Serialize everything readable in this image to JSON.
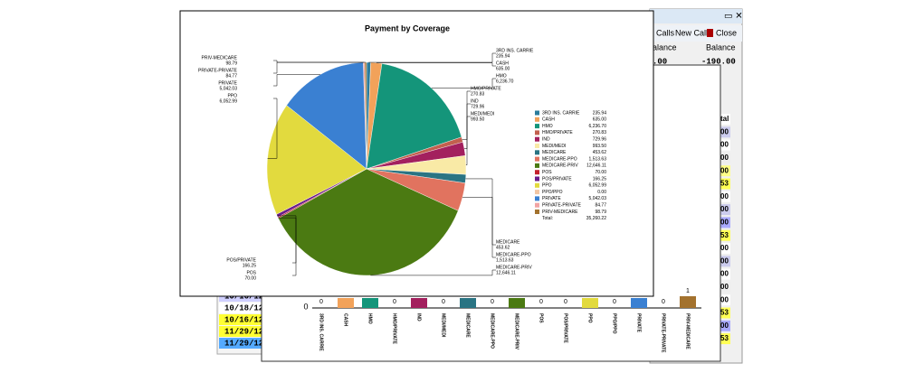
{
  "chart_data": {
    "type": "pie",
    "title": "Payment by Coverage",
    "categories": [
      "3RD INS. CARRIE",
      "CASH",
      "HMO",
      "HMO/PRIVATE",
      "IND",
      "MEDI/MEDI",
      "MEDICARE",
      "MEDICARE-PPO",
      "MEDICARE-PRIV",
      "POS",
      "POS/PRIVATE",
      "PPO",
      "PPO/PPO",
      "PRIVATE",
      "PRIVATE-PRIVATE",
      "PRIV-MEDICARE"
    ],
    "values": [
      235.94,
      635.0,
      6236.7,
      270.83,
      729.96,
      993.5,
      453.62,
      1513.63,
      12646.11,
      70.0,
      166.25,
      6052.99,
      0.0,
      5042.03,
      84.77,
      98.79
    ],
    "value_labels": [
      "235.94",
      "635.00",
      "6,236.70",
      "270.83",
      "729.96",
      "993.50",
      "453.62",
      "1,513.63",
      "12,646.11",
      "70.00",
      "166.25",
      "6,052.99",
      "0.00",
      "5,042.03",
      "84.77",
      "98.79"
    ],
    "colors": [
      "#2b7c9c",
      "#f2a25a",
      "#14957a",
      "#c2604e",
      "#a3205e",
      "#f9eaa6",
      "#2a7483",
      "#e1735f",
      "#4b7a12",
      "#c4222f",
      "#6a1c8c",
      "#e2da3e",
      "#f2c6a4",
      "#3a80d2",
      "#f2a4a4",
      "#a3722e"
    ],
    "total_label": "Total:",
    "total": 35260.22,
    "total_value_label": "35,260.22"
  },
  "back_bar_chart": {
    "axis_zero": 0,
    "categories": [
      "3RD INS. CARRIE",
      "CASH",
      "HMO",
      "HMO/PRIVATE",
      "IND",
      "MEDI/MEDI",
      "MEDICARE",
      "MEDICARE-PPO",
      "MEDICARE-PRIV",
      "POS",
      "POS/PRIVATE",
      "PPO",
      "PPO/PPO",
      "PRIVATE",
      "PRIVATE-PRIVATE",
      "PRIV-MEDICARE"
    ],
    "values": [
      0,
      null,
      null,
      0,
      null,
      0,
      null,
      0,
      null,
      0,
      0,
      null,
      0,
      null,
      0,
      1
    ]
  },
  "toolbar": {
    "calls": "Calls",
    "new_call": "New Call",
    "close": "Close"
  },
  "balance_header": [
    "alance",
    "Balance"
  ],
  "balance_row": [
    ".00",
    "-190.00"
  ],
  "dates": [
    "10/16/12",
    "10/18/12",
    "10/16/12",
    "11/29/12",
    "11/29/12"
  ],
  "right_column": [
    "tal",
    "00",
    "00",
    "00",
    "00",
    "53",
    "00",
    "00",
    "00",
    "53",
    "00",
    "00",
    "00",
    "00",
    "00",
    "53",
    "00",
    "53"
  ]
}
